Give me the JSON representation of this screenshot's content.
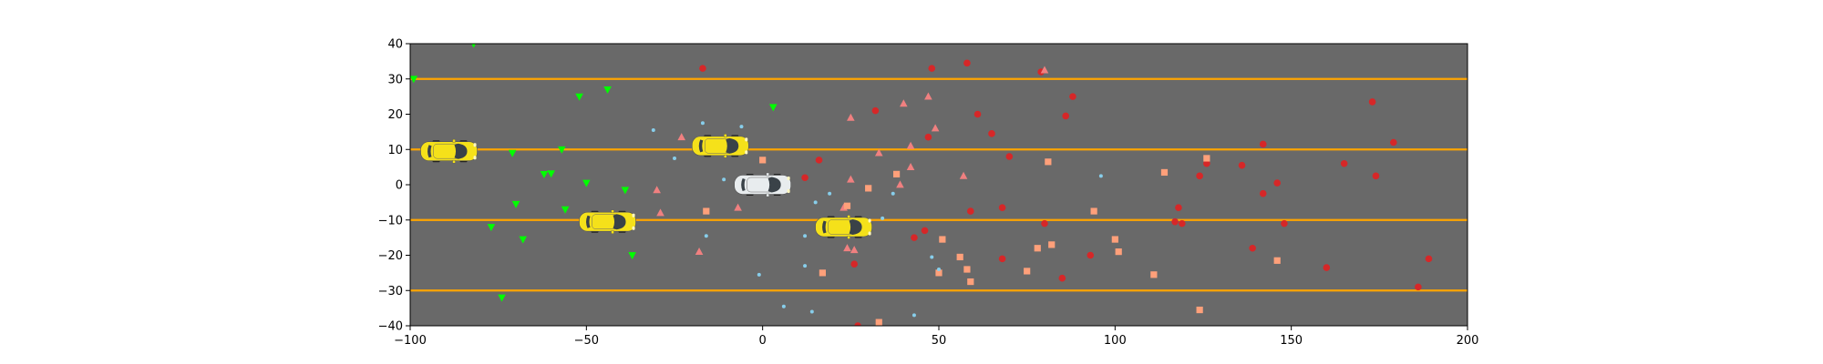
{
  "chart_data": {
    "type": "scatter",
    "title": "",
    "xlabel": "",
    "ylabel": "",
    "xlim": [
      -100,
      200
    ],
    "ylim": [
      -40,
      40
    ],
    "xticks": [
      -100,
      -50,
      0,
      50,
      100,
      150,
      200
    ],
    "yticks": [
      -40,
      -30,
      -20,
      -10,
      0,
      10,
      20,
      30,
      40
    ],
    "xtick_labels": [
      "−100",
      "−50",
      "0",
      "50",
      "100",
      "150",
      "200"
    ],
    "ytick_labels": [
      "−40",
      "−30",
      "−20",
      "−10",
      "0",
      "10",
      "20",
      "30",
      "40"
    ],
    "grid": false,
    "legend": "none",
    "road_color": "#696969",
    "lane_line_color": "#FFA500",
    "lane_lines_y": [
      -30,
      -10,
      10,
      30
    ],
    "vehicles": [
      {
        "name": "ego-car",
        "color": "#E8ECEE",
        "x": 0,
        "y": 0
      },
      {
        "name": "car-1",
        "color": "#F5E11A",
        "x": -89,
        "y": 9.5
      },
      {
        "name": "car-2",
        "color": "#F5E11A",
        "x": -12,
        "y": 11
      },
      {
        "name": "car-3",
        "color": "#F5E11A",
        "x": -44,
        "y": -10.5
      },
      {
        "name": "car-4",
        "color": "#F5E11A",
        "x": 23,
        "y": -12
      }
    ],
    "series": [
      {
        "marker": "triangle-down",
        "color": "#00FF00",
        "points": [
          [
            -82,
            40
          ],
          [
            -99,
            30
          ],
          [
            -52,
            25
          ],
          [
            -44,
            27
          ],
          [
            3,
            22
          ],
          [
            -71,
            9
          ],
          [
            -57,
            10
          ],
          [
            -62,
            3
          ],
          [
            -60,
            3.2
          ],
          [
            -50,
            0.5
          ],
          [
            -39,
            -1.5
          ],
          [
            -70,
            -5.5
          ],
          [
            -56,
            -7
          ],
          [
            -77,
            -12
          ],
          [
            -68,
            -15.5
          ],
          [
            -37,
            -20
          ],
          [
            -74,
            -32
          ]
        ]
      },
      {
        "marker": "circle",
        "color": "#D62728",
        "points": [
          [
            -17,
            33
          ],
          [
            48,
            33
          ],
          [
            58,
            34.5
          ],
          [
            79,
            32
          ],
          [
            88,
            25
          ],
          [
            32,
            21
          ],
          [
            61,
            20
          ],
          [
            65,
            14.5
          ],
          [
            47,
            13.5
          ],
          [
            86,
            19.5
          ],
          [
            70,
            8
          ],
          [
            12,
            2
          ],
          [
            16,
            7
          ],
          [
            26,
            -22.5
          ],
          [
            43,
            -15
          ],
          [
            46,
            -13
          ],
          [
            59,
            -7.5
          ],
          [
            68,
            -6.5
          ],
          [
            68,
            -21
          ],
          [
            80,
            -11
          ],
          [
            85,
            -26.5
          ],
          [
            93,
            -20
          ],
          [
            117,
            -10.5
          ],
          [
            118,
            -6.5
          ],
          [
            119,
            -11
          ],
          [
            124,
            2.5
          ],
          [
            126,
            6
          ],
          [
            136,
            5.5
          ],
          [
            142,
            11.5
          ],
          [
            139,
            -18
          ],
          [
            142,
            -2.5
          ],
          [
            146,
            0.5
          ],
          [
            148,
            -11
          ],
          [
            165,
            6
          ],
          [
            173,
            23.5
          ],
          [
            174,
            2.5
          ],
          [
            179,
            12
          ],
          [
            160,
            -23.5
          ],
          [
            186,
            -29
          ],
          [
            189,
            -21
          ],
          [
            27,
            -40
          ]
        ]
      },
      {
        "marker": "triangle-up",
        "color": "#F08080",
        "points": [
          [
            -23,
            13.5
          ],
          [
            -30,
            -1.5
          ],
          [
            -29,
            -8
          ],
          [
            -7,
            -6.5
          ],
          [
            -18,
            -19
          ],
          [
            25,
            19
          ],
          [
            33,
            9
          ],
          [
            40,
            23
          ],
          [
            42,
            11
          ],
          [
            42,
            5
          ],
          [
            39,
            0
          ],
          [
            47,
            25
          ],
          [
            49,
            16
          ],
          [
            57,
            2.5
          ],
          [
            80,
            32.5
          ],
          [
            25,
            1.5
          ],
          [
            23,
            -6.5
          ],
          [
            24,
            -18
          ],
          [
            26,
            -18.5
          ]
        ]
      },
      {
        "marker": "square",
        "color": "#FFA07A",
        "points": [
          [
            0,
            7
          ],
          [
            -16,
            -7.5
          ],
          [
            24,
            -6
          ],
          [
            30,
            -1
          ],
          [
            38,
            3
          ],
          [
            81,
            6.5
          ],
          [
            94,
            -7.5
          ],
          [
            78,
            -18
          ],
          [
            82,
            -17
          ],
          [
            75,
            -24.5
          ],
          [
            50,
            -25
          ],
          [
            51,
            -15.5
          ],
          [
            56,
            -20.5
          ],
          [
            58,
            -24
          ],
          [
            59,
            -27.5
          ],
          [
            17,
            -25
          ],
          [
            33,
            -39
          ],
          [
            100,
            -15.5
          ],
          [
            101,
            -19
          ],
          [
            111,
            -25.5
          ],
          [
            114,
            3.5
          ],
          [
            124,
            -35.5
          ],
          [
            126,
            7.5
          ],
          [
            146,
            -21.5
          ]
        ]
      },
      {
        "marker": "small-circle",
        "color": "#87CEEB",
        "points": [
          [
            -31,
            15.5
          ],
          [
            -17,
            17.5
          ],
          [
            -6,
            16.5
          ],
          [
            -25,
            7.5
          ],
          [
            -11,
            1.5
          ],
          [
            -16,
            -14.5
          ],
          [
            -1,
            -25.5
          ],
          [
            6,
            -34.5
          ],
          [
            12,
            -23
          ],
          [
            14,
            -36
          ],
          [
            15,
            -5
          ],
          [
            19,
            -2.5
          ],
          [
            34,
            -9.5
          ],
          [
            37,
            -2.5
          ],
          [
            48,
            -20.5
          ],
          [
            50,
            -24
          ],
          [
            43,
            -37
          ],
          [
            96,
            2.5
          ],
          [
            12,
            -14.5
          ]
        ]
      }
    ]
  }
}
